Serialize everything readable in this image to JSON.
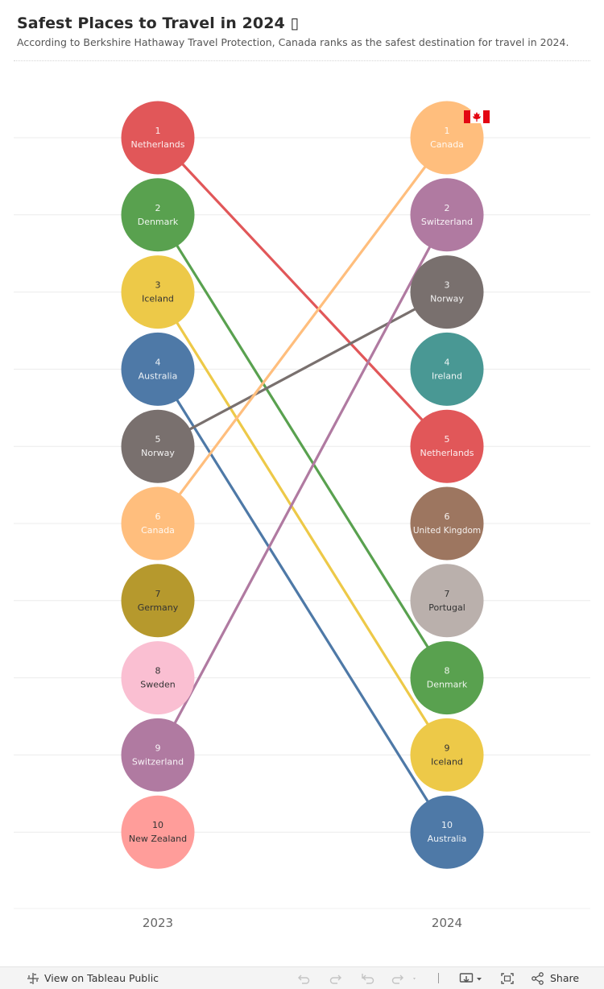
{
  "header": {
    "title": "Safest Places to Travel in 2024 ▯",
    "subtitle": "According to Berkshire Hathaway Travel Protection, Canada ranks as the safest destination for travel in 2024."
  },
  "chart_data": {
    "type": "slope",
    "columns": [
      "2023",
      "2024"
    ],
    "rankings": {
      "2023": [
        "Netherlands",
        "Denmark",
        "Iceland",
        "Australia",
        "Norway",
        "Canada",
        "Germany",
        "Sweden",
        "Switzerland",
        "New Zealand"
      ],
      "2024": [
        "Canada",
        "Switzerland",
        "Norway",
        "Ireland",
        "Netherlands",
        "United Kingdom",
        "Portugal",
        "Denmark",
        "Iceland",
        "Australia"
      ]
    },
    "connections": [
      {
        "country": "Netherlands",
        "rank_2023": 1,
        "rank_2024": 5
      },
      {
        "country": "Denmark",
        "rank_2023": 2,
        "rank_2024": 8
      },
      {
        "country": "Iceland",
        "rank_2023": 3,
        "rank_2024": 9
      },
      {
        "country": "Australia",
        "rank_2023": 4,
        "rank_2024": 10
      },
      {
        "country": "Norway",
        "rank_2023": 5,
        "rank_2024": 3
      },
      {
        "country": "Canada",
        "rank_2023": 6,
        "rank_2024": 1
      },
      {
        "country": "Switzerland",
        "rank_2023": 9,
        "rank_2024": 2
      }
    ],
    "colors": {
      "Netherlands": "#e15759",
      "Denmark": "#59a14f",
      "Iceland": "#edc948",
      "Australia": "#4e79a7",
      "Norway": "#79706e",
      "Canada": "#ffbe7d",
      "Germany": "#b6992d",
      "Sweden": "#fabfd2",
      "Switzerland": "#b07aa1",
      "New Zealand": "#ff9d9a",
      "Ireland": "#499894",
      "United Kingdom": "#9d7660",
      "Portugal": "#bab0ac"
    },
    "dark_label_countries": [
      "Iceland",
      "Germany",
      "Sweden",
      "New Zealand",
      "Portugal"
    ],
    "flag_country": "Canada"
  },
  "toolbar": {
    "view_label": "View on Tableau Public",
    "share_label": "Share"
  }
}
